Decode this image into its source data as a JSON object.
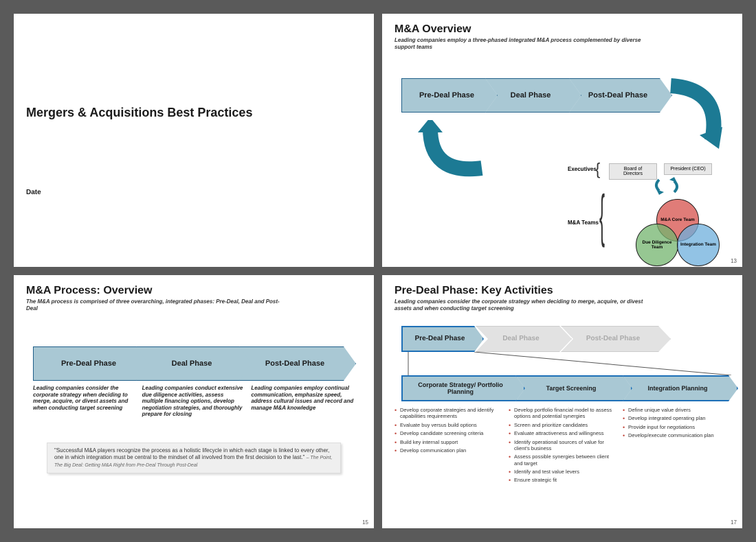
{
  "colors": {
    "chevron_fill": "#a9c8d4",
    "chevron_border": "#1f5e88",
    "chevron_ghost_fill": "#e2e2e2",
    "chevron_blue_border": "#1d6fb7",
    "arrow_teal": "#1c7a94",
    "venn_red": "rgba(214,80,75,0.75)",
    "venn_green": "rgba(115,180,110,0.75)",
    "venn_blue": "rgba(110,175,220,0.75)",
    "bullet_red": "#c24a3f",
    "quote_bg": "#efefef"
  },
  "slide1": {
    "title": "Mergers & Acquisitions Best Practices",
    "date": "Date"
  },
  "slide2": {
    "title": "M&A Overview",
    "subtitle": "Leading companies employ a three-phased integrated M&A process complemented by diverse support teams",
    "phases": [
      "Pre-Deal Phase",
      "Deal Phase",
      "Post-Deal Phase"
    ],
    "exec_label": "Executives",
    "exec_boxes": [
      "Board of Directors",
      "President (CEO)"
    ],
    "teams_label": "M&A Teams",
    "venn": [
      "M&A Core Team",
      "Due Diligence Team",
      "Integration Team"
    ],
    "page": "13"
  },
  "slide3": {
    "title": "M&A Process: Overview",
    "subtitle": "The M&A process is comprised of three overarching, integrated phases:  Pre-Deal, Deal and Post-Deal",
    "phases": [
      "Pre-Deal Phase",
      "Deal Phase",
      "Post-Deal Phase"
    ],
    "descs": [
      "Leading companies consider the corporate strategy when deciding to merge, acquire, or divest assets and when conducting target screening",
      "Leading companies conduct extensive due diligence activities, assess multiple financing options, develop negotiation strategies, and thoroughly prepare for closing",
      "Leading companies employ continual communication, emphasize speed, address cultural issues and record and manage M&A knowledge"
    ],
    "quote": "\"Successful M&A players recognize the process as a holistic lifecycle in which each stage is linked to every other, one in which integration must be central to the mindset of all involved from the first decision to the last.\"",
    "quote_attr": " – The Point, The Big Deal: Getting M&A Right from Pre-Deal Through Post-Deal",
    "page": "15"
  },
  "slide4": {
    "title": "Pre-Deal Phase: Key Activities",
    "subtitle": "Leading companies consider the corporate strategy when deciding to merge, acquire, or divest assets and when conducting target screening",
    "top_phases": [
      "Pre-Deal Phase",
      "Deal Phase",
      "Post-Deal Phase"
    ],
    "sub_phases": [
      "Corporate Strategy/ Portfolio Planning",
      "Target Screening",
      "Integration Planning"
    ],
    "col1": [
      "Develop corporate strategies and identify capabilities requirements",
      "Evaluate buy versus build options",
      "Develop candidate screening criteria",
      "Build key internal support",
      "Develop communication plan"
    ],
    "col2": [
      "Develop portfolio financial model to assess options and potential synergies",
      "Screen and prioritize candidates",
      "Evaluate attractiveness and willingness",
      "Identify operational sources of value for client's business",
      "Assess possible synergies between client and target",
      "Identify and test value levers",
      "Ensure strategic fit"
    ],
    "col3": [
      "Define unique value drivers",
      "Develop integrated operating plan",
      "Provide input for negotiations",
      "Develop/execute communication plan"
    ],
    "page": "17"
  }
}
